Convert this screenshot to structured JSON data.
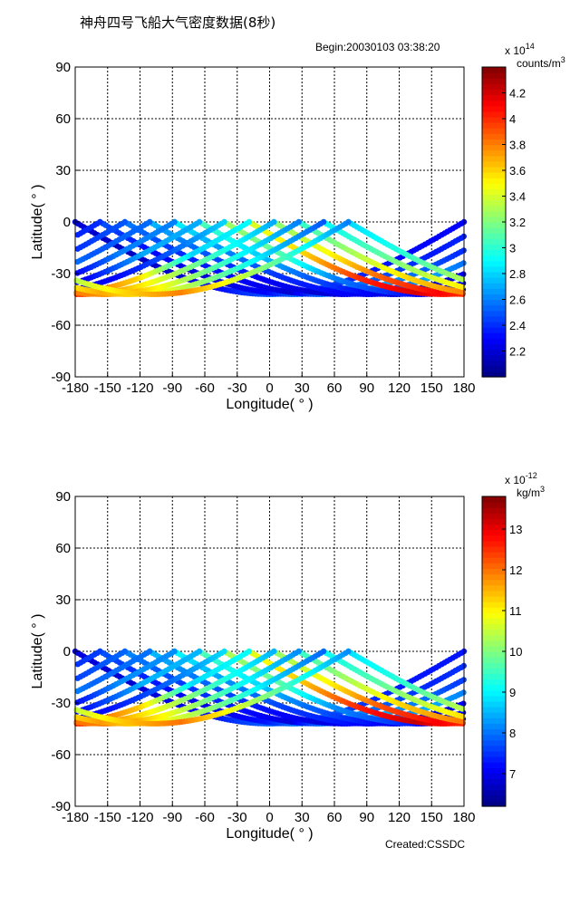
{
  "figure": {
    "title": "神舟四号飞船大气密度数据(8秒)",
    "begin": "Begin:20030103  03:38:20",
    "created": "Created:CSSDC"
  },
  "chart_data": [
    {
      "type": "scatter",
      "xlabel": "Longitude(  °  )",
      "ylabel": "Latitude(  °  )",
      "xlim": [
        -180,
        180
      ],
      "ylim": [
        -90,
        90
      ],
      "xticks": [
        "-180",
        "-150",
        "-120",
        "-90",
        "-60",
        "-30",
        "0",
        "30",
        "60",
        "90",
        "120",
        "150",
        "180"
      ],
      "yticks": [
        "90",
        "60",
        "30",
        "0",
        "-30",
        "-60",
        "-90"
      ],
      "grid": true,
      "colorbar": {
        "exponent_base": "x 10",
        "exponent": "14",
        "unit_base": "counts/m",
        "unit_power": "3",
        "min": 2.0,
        "max": 4.4,
        "ticks": [
          "2.2",
          "2.4",
          "2.6",
          "2.8",
          "3",
          "3.2",
          "3.4",
          "3.6",
          "3.8",
          "4",
          "4.2"
        ]
      },
      "orbits": [
        {
          "start_lon": -180,
          "values": [
            2.2,
            2.15,
            2.2,
            2.4,
            2.6,
            2.4,
            2.3,
            2.3
          ]
        },
        {
          "start_lon": -157,
          "values": [
            2.5,
            2.3,
            2.2,
            2.3,
            2.8,
            2.5,
            2.35,
            2.4
          ]
        },
        {
          "start_lon": -134,
          "values": [
            2.6,
            2.4,
            2.3,
            2.2,
            2.9,
            2.6,
            2.4,
            2.5
          ]
        },
        {
          "start_lon": -111,
          "values": [
            2.75,
            2.5,
            2.3,
            2.2,
            2.3,
            2.7,
            2.5,
            2.55
          ]
        },
        {
          "start_lon": -88,
          "values": [
            2.9,
            2.6,
            2.4,
            2.3,
            2.2,
            2.2,
            2.6,
            2.6
          ]
        },
        {
          "start_lon": -65,
          "values": [
            3.1,
            2.8,
            2.5,
            2.3,
            2.1,
            2.3,
            2.7,
            2.7
          ]
        },
        {
          "start_lon": -42,
          "values": [
            3.3,
            3.1,
            2.6,
            2.4,
            2.2,
            2.3,
            2.5,
            2.8
          ]
        },
        {
          "start_lon": -19,
          "values": [
            3.4,
            3.6,
            4.0,
            4.2,
            3.9,
            3.6,
            2.8,
            2.9
          ]
        },
        {
          "start_lon": 4,
          "values": [
            3.2,
            3.5,
            3.9,
            4.1,
            3.8,
            3.4,
            3.0,
            2.7
          ]
        },
        {
          "start_lon": 27,
          "values": [
            3.0,
            3.3,
            3.6,
            3.8,
            3.7,
            3.3,
            2.9,
            2.6
          ]
        },
        {
          "start_lon": 50,
          "values": [
            2.9,
            3.1,
            3.4,
            3.7,
            3.5,
            3.2,
            2.8,
            2.5
          ]
        },
        {
          "start_lon": 73,
          "values": [
            2.8,
            3.0,
            3.3,
            3.6,
            3.8,
            3.4,
            3.0,
            2.6
          ]
        }
      ]
    },
    {
      "type": "scatter",
      "xlabel": "Longitude(  °  )",
      "ylabel": "Latitude(  °  )",
      "xlim": [
        -180,
        180
      ],
      "ylim": [
        -90,
        90
      ],
      "xticks": [
        "-180",
        "-150",
        "-120",
        "-90",
        "-60",
        "-30",
        "0",
        "30",
        "60",
        "90",
        "120",
        "150",
        "180"
      ],
      "yticks": [
        "90",
        "60",
        "30",
        "0",
        "-30",
        "-60",
        "-90"
      ],
      "grid": true,
      "colorbar": {
        "exponent_base": "x 10",
        "exponent": "-12",
        "unit_base": "kg/m",
        "unit_power": "3",
        "min": 6.2,
        "max": 13.8,
        "ticks": [
          "7",
          "8",
          "9",
          "10",
          "11",
          "12",
          "13"
        ]
      },
      "orbits": [
        {
          "start_lon": -180,
          "values": [
            6.9,
            6.8,
            7.0,
            7.6,
            8.2,
            7.6,
            7.3,
            7.3
          ]
        },
        {
          "start_lon": -157,
          "values": [
            7.8,
            7.3,
            6.9,
            7.3,
            8.8,
            7.9,
            7.4,
            7.6
          ]
        },
        {
          "start_lon": -134,
          "values": [
            8.2,
            7.6,
            7.3,
            6.9,
            9.1,
            8.2,
            7.6,
            7.9
          ]
        },
        {
          "start_lon": -111,
          "values": [
            8.6,
            7.9,
            7.3,
            6.9,
            7.3,
            8.5,
            7.9,
            8.0
          ]
        },
        {
          "start_lon": -88,
          "values": [
            9.1,
            8.2,
            7.6,
            7.3,
            6.9,
            6.9,
            8.2,
            8.2
          ]
        },
        {
          "start_lon": -65,
          "values": [
            9.7,
            8.8,
            7.9,
            7.3,
            6.6,
            7.3,
            8.5,
            8.5
          ]
        },
        {
          "start_lon": -42,
          "values": [
            10.4,
            9.7,
            8.2,
            7.6,
            6.9,
            7.3,
            7.9,
            8.8
          ]
        },
        {
          "start_lon": -19,
          "values": [
            10.7,
            11.4,
            12.6,
            13.3,
            12.3,
            11.4,
            8.8,
            9.1
          ]
        },
        {
          "start_lon": 4,
          "values": [
            10.1,
            11.0,
            12.3,
            12.9,
            12.0,
            10.7,
            9.4,
            8.5
          ]
        },
        {
          "start_lon": 27,
          "values": [
            9.4,
            10.4,
            11.4,
            12.0,
            11.7,
            10.4,
            9.1,
            8.2
          ]
        },
        {
          "start_lon": 50,
          "values": [
            9.1,
            9.7,
            10.7,
            11.7,
            11.0,
            10.1,
            8.8,
            7.9
          ]
        },
        {
          "start_lon": 73,
          "values": [
            8.8,
            9.4,
            10.4,
            11.4,
            12.0,
            10.7,
            9.4,
            8.2
          ]
        }
      ]
    }
  ]
}
